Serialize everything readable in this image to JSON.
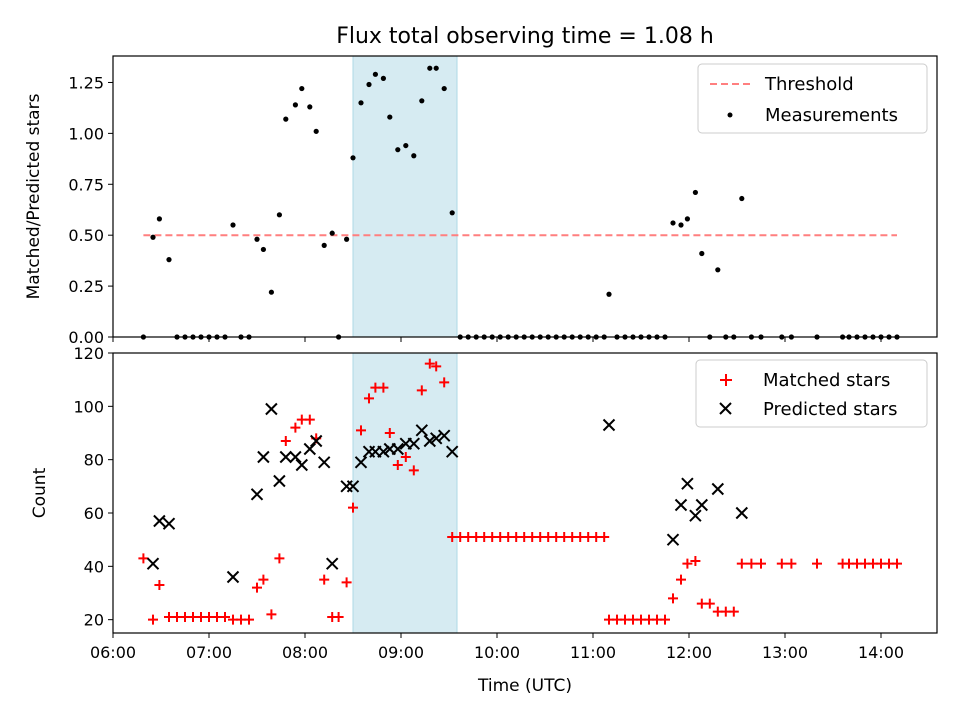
{
  "title": "Flux total observing time = 1.08 h",
  "colors": {
    "threshold": "#ff7f7f",
    "measurements": "#000000",
    "matched": "#ff0000",
    "predicted": "#000000",
    "shade": "#add8e6"
  },
  "chart_data": [
    {
      "type": "scatter",
      "ylabel": "Matched/Predicted stars",
      "xlim": [
        "06:00",
        "14:35"
      ],
      "ylim": [
        0,
        1.38
      ],
      "yticks": [
        "0.00",
        "0.25",
        "0.50",
        "0.75",
        "1.00",
        "1.25"
      ],
      "shaded_interval": [
        "08:30",
        "09:35"
      ],
      "legend": {
        "position": "top-right",
        "entries": [
          "Threshold",
          "Measurements"
        ]
      },
      "threshold": {
        "name": "Threshold",
        "x": [
          "06:19",
          "14:10"
        ],
        "y": 0.5
      },
      "series": [
        {
          "name": "Measurements",
          "marker": "dot",
          "points": [
            [
              "06:19",
              0.0
            ],
            [
              "06:25",
              0.49
            ],
            [
              "06:29",
              0.58
            ],
            [
              "06:35",
              0.38
            ],
            [
              "06:40",
              0.0
            ],
            [
              "06:45",
              0.0
            ],
            [
              "06:50",
              0.0
            ],
            [
              "06:55",
              0.0
            ],
            [
              "07:00",
              0.0
            ],
            [
              "07:05",
              0.0
            ],
            [
              "07:10",
              0.0
            ],
            [
              "07:15",
              0.55
            ],
            [
              "07:20",
              0.0
            ],
            [
              "07:25",
              0.0
            ],
            [
              "07:30",
              0.48
            ],
            [
              "07:34",
              0.43
            ],
            [
              "07:39",
              0.22
            ],
            [
              "07:44",
              0.6
            ],
            [
              "07:48",
              1.07
            ],
            [
              "07:54",
              1.14
            ],
            [
              "07:58",
              1.22
            ],
            [
              "08:03",
              1.13
            ],
            [
              "08:07",
              1.01
            ],
            [
              "08:12",
              0.45
            ],
            [
              "08:17",
              0.51
            ],
            [
              "08:21",
              0.0
            ],
            [
              "08:26",
              0.48
            ],
            [
              "08:30",
              0.88
            ],
            [
              "08:35",
              1.15
            ],
            [
              "08:40",
              1.24
            ],
            [
              "08:44",
              1.29
            ],
            [
              "08:49",
              1.27
            ],
            [
              "08:53",
              1.08
            ],
            [
              "08:58",
              0.92
            ],
            [
              "09:03",
              0.94
            ],
            [
              "09:08",
              0.89
            ],
            [
              "09:13",
              1.16
            ],
            [
              "09:18",
              1.32
            ],
            [
              "09:22",
              1.32
            ],
            [
              "09:27",
              1.22
            ],
            [
              "09:32",
              0.61
            ],
            [
              "09:37",
              0.0
            ],
            [
              "09:42",
              0.0
            ],
            [
              "09:47",
              0.0
            ],
            [
              "09:52",
              0.0
            ],
            [
              "09:57",
              0.0
            ],
            [
              "10:02",
              0.0
            ],
            [
              "10:07",
              0.0
            ],
            [
              "10:12",
              0.0
            ],
            [
              "10:17",
              0.0
            ],
            [
              "10:22",
              0.0
            ],
            [
              "10:27",
              0.0
            ],
            [
              "10:32",
              0.0
            ],
            [
              "10:37",
              0.0
            ],
            [
              "10:42",
              0.0
            ],
            [
              "10:47",
              0.0
            ],
            [
              "10:52",
              0.0
            ],
            [
              "10:57",
              0.0
            ],
            [
              "11:02",
              0.0
            ],
            [
              "11:07",
              0.0
            ],
            [
              "11:10",
              0.21
            ],
            [
              "11:15",
              0.0
            ],
            [
              "11:20",
              0.0
            ],
            [
              "11:25",
              0.0
            ],
            [
              "11:30",
              0.0
            ],
            [
              "11:35",
              0.0
            ],
            [
              "11:40",
              0.0
            ],
            [
              "11:45",
              0.0
            ],
            [
              "11:50",
              0.56
            ],
            [
              "11:55",
              0.55
            ],
            [
              "11:59",
              0.58
            ],
            [
              "12:04",
              0.71
            ],
            [
              "12:08",
              0.41
            ],
            [
              "12:13",
              0.0
            ],
            [
              "12:18",
              0.33
            ],
            [
              "12:23",
              0.0
            ],
            [
              "12:28",
              0.0
            ],
            [
              "12:33",
              0.68
            ],
            [
              "12:39",
              0.0
            ],
            [
              "12:45",
              0.0
            ],
            [
              "12:58",
              0.0
            ],
            [
              "13:04",
              0.0
            ],
            [
              "13:20",
              0.0
            ],
            [
              "13:36",
              0.0
            ],
            [
              "13:40",
              0.0
            ],
            [
              "13:45",
              0.0
            ],
            [
              "13:50",
              0.0
            ],
            [
              "13:55",
              0.0
            ],
            [
              "14:00",
              0.0
            ],
            [
              "14:05",
              0.0
            ],
            [
              "14:10",
              0.0
            ]
          ]
        }
      ]
    },
    {
      "type": "scatter",
      "xlabel": "Time (UTC)",
      "ylabel": "Count",
      "xlim": [
        "06:00",
        "14:35"
      ],
      "ylim": [
        15,
        120
      ],
      "xticks": [
        "06:00",
        "07:00",
        "08:00",
        "09:00",
        "10:00",
        "11:00",
        "12:00",
        "13:00",
        "14:00"
      ],
      "yticks": [
        "20",
        "40",
        "60",
        "80",
        "100",
        "120"
      ],
      "shaded_interval": [
        "08:30",
        "09:35"
      ],
      "legend": {
        "position": "top-right",
        "entries": [
          "Matched stars",
          "Predicted stars"
        ]
      },
      "series": [
        {
          "name": "Matched stars",
          "marker": "plus",
          "points": [
            [
              "06:19",
              43
            ],
            [
              "06:25",
              20
            ],
            [
              "06:29",
              33
            ],
            [
              "06:35",
              21
            ],
            [
              "06:40",
              21
            ],
            [
              "06:45",
              21
            ],
            [
              "06:50",
              21
            ],
            [
              "06:55",
              21
            ],
            [
              "07:00",
              21
            ],
            [
              "07:05",
              21
            ],
            [
              "07:10",
              21
            ],
            [
              "07:15",
              20
            ],
            [
              "07:20",
              20
            ],
            [
              "07:25",
              20
            ],
            [
              "07:30",
              32
            ],
            [
              "07:34",
              35
            ],
            [
              "07:39",
              22
            ],
            [
              "07:44",
              43
            ],
            [
              "07:48",
              87
            ],
            [
              "07:54",
              92
            ],
            [
              "07:58",
              95
            ],
            [
              "08:03",
              95
            ],
            [
              "08:07",
              88
            ],
            [
              "08:12",
              35
            ],
            [
              "08:17",
              21
            ],
            [
              "08:21",
              21
            ],
            [
              "08:26",
              34
            ],
            [
              "08:30",
              62
            ],
            [
              "08:35",
              91
            ],
            [
              "08:40",
              103
            ],
            [
              "08:44",
              107
            ],
            [
              "08:49",
              107
            ],
            [
              "08:53",
              90
            ],
            [
              "08:58",
              78
            ],
            [
              "09:03",
              81
            ],
            [
              "09:08",
              76
            ],
            [
              "09:13",
              106
            ],
            [
              "09:18",
              116
            ],
            [
              "09:22",
              115
            ],
            [
              "09:27",
              109
            ],
            [
              "09:32",
              51
            ],
            [
              "09:37",
              51
            ],
            [
              "09:42",
              51
            ],
            [
              "09:47",
              51
            ],
            [
              "09:52",
              51
            ],
            [
              "09:57",
              51
            ],
            [
              "10:02",
              51
            ],
            [
              "10:07",
              51
            ],
            [
              "10:12",
              51
            ],
            [
              "10:17",
              51
            ],
            [
              "10:22",
              51
            ],
            [
              "10:27",
              51
            ],
            [
              "10:32",
              51
            ],
            [
              "10:37",
              51
            ],
            [
              "10:42",
              51
            ],
            [
              "10:47",
              51
            ],
            [
              "10:52",
              51
            ],
            [
              "10:57",
              51
            ],
            [
              "11:02",
              51
            ],
            [
              "11:07",
              51
            ],
            [
              "11:10",
              20
            ],
            [
              "11:15",
              20
            ],
            [
              "11:20",
              20
            ],
            [
              "11:25",
              20
            ],
            [
              "11:30",
              20
            ],
            [
              "11:35",
              20
            ],
            [
              "11:40",
              20
            ],
            [
              "11:45",
              20
            ],
            [
              "11:50",
              28
            ],
            [
              "11:55",
              35
            ],
            [
              "11:59",
              41
            ],
            [
              "12:04",
              42
            ],
            [
              "12:08",
              26
            ],
            [
              "12:13",
              26
            ],
            [
              "12:18",
              23
            ],
            [
              "12:23",
              23
            ],
            [
              "12:28",
              23
            ],
            [
              "12:33",
              41
            ],
            [
              "12:39",
              41
            ],
            [
              "12:45",
              41
            ],
            [
              "12:58",
              41
            ],
            [
              "13:04",
              41
            ],
            [
              "13:20",
              41
            ],
            [
              "13:36",
              41
            ],
            [
              "13:40",
              41
            ],
            [
              "13:45",
              41
            ],
            [
              "13:50",
              41
            ],
            [
              "13:55",
              41
            ],
            [
              "14:00",
              41
            ],
            [
              "14:05",
              41
            ],
            [
              "14:10",
              41
            ]
          ]
        },
        {
          "name": "Predicted stars",
          "marker": "x",
          "points": [
            [
              "06:25",
              41
            ],
            [
              "06:29",
              57
            ],
            [
              "06:35",
              56
            ],
            [
              "07:15",
              36
            ],
            [
              "07:30",
              67
            ],
            [
              "07:34",
              81
            ],
            [
              "07:39",
              99
            ],
            [
              "07:44",
              72
            ],
            [
              "07:48",
              81
            ],
            [
              "07:54",
              81
            ],
            [
              "07:58",
              78
            ],
            [
              "08:03",
              84
            ],
            [
              "08:07",
              87
            ],
            [
              "08:12",
              79
            ],
            [
              "08:17",
              41
            ],
            [
              "08:26",
              70
            ],
            [
              "08:30",
              70
            ],
            [
              "08:35",
              79
            ],
            [
              "08:40",
              83
            ],
            [
              "08:44",
              83
            ],
            [
              "08:49",
              83
            ],
            [
              "08:53",
              84
            ],
            [
              "08:58",
              84
            ],
            [
              "09:03",
              86
            ],
            [
              "09:08",
              86
            ],
            [
              "09:13",
              91
            ],
            [
              "09:18",
              87
            ],
            [
              "09:22",
              88
            ],
            [
              "09:27",
              89
            ],
            [
              "09:32",
              83
            ],
            [
              "11:10",
              93
            ],
            [
              "11:50",
              50
            ],
            [
              "11:55",
              63
            ],
            [
              "11:59",
              71
            ],
            [
              "12:04",
              59
            ],
            [
              "12:08",
              63
            ],
            [
              "12:18",
              69
            ],
            [
              "12:33",
              60
            ]
          ]
        }
      ]
    }
  ]
}
